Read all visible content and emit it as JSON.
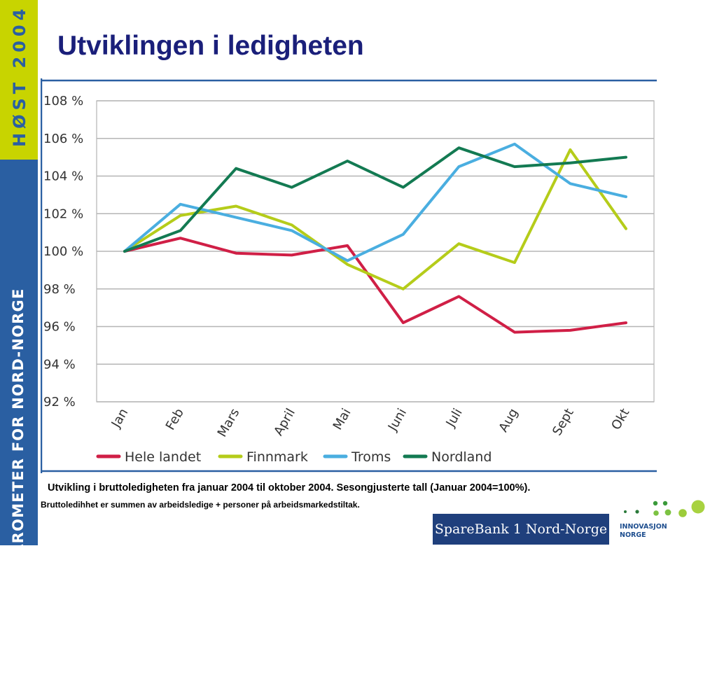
{
  "sidebar": {
    "top_text": "HØST 2004",
    "bottom_text": "KONJUNKTURBAROMETER FOR NORD-NORGE"
  },
  "title": "Utviklingen i ledigheten",
  "caption": {
    "line1": "Utvikling i bruttoledigheten fra januar 2004 til oktober 2004. Sesongjusterte tall  (Januar 2004=100%).",
    "line2": "Bruttoledihhet er summen av arbeidsledige + personer på arbeidsmarkedstiltak."
  },
  "logos": {
    "sparebank": "SpareBank 1 Nord-Norge",
    "innovasjon": "INNOVASJON\nNORGE"
  },
  "colors": {
    "sidebar_top": "#c8d400",
    "sidebar_bottom": "#2a5fa2",
    "title": "#1a1f7a",
    "frame": "#2a5fa2"
  },
  "chart_data": {
    "type": "line",
    "categories": [
      "Jan",
      "Feb",
      "Mars",
      "April",
      "Mai",
      "Juni",
      "Juli",
      "Aug",
      "Sept",
      "Okt"
    ],
    "ylim": [
      92,
      108
    ],
    "yticks": [
      "92 %",
      "94 %",
      "96 %",
      "98 %",
      "100 %",
      "102 %",
      "104 %",
      "106 %",
      "108 %"
    ],
    "grid": true,
    "legend_position": "bottom",
    "series": [
      {
        "name": "Hele landet",
        "color": "#d01f46",
        "values": [
          100.0,
          100.7,
          99.9,
          99.8,
          100.3,
          96.2,
          97.6,
          95.7,
          95.8,
          96.2
        ]
      },
      {
        "name": "Finnmark",
        "color": "#b5cc1a",
        "values": [
          100.0,
          101.9,
          102.4,
          101.4,
          99.3,
          98.0,
          100.4,
          99.4,
          105.4,
          101.2
        ]
      },
      {
        "name": "Troms",
        "color": "#4aaee0",
        "values": [
          100.0,
          102.5,
          101.8,
          101.1,
          99.5,
          100.9,
          104.5,
          105.7,
          103.6,
          102.9
        ]
      },
      {
        "name": "Nordland",
        "color": "#137a52",
        "values": [
          100.0,
          101.1,
          104.4,
          103.4,
          104.8,
          103.4,
          105.5,
          104.5,
          104.7,
          105.0
        ]
      }
    ]
  }
}
